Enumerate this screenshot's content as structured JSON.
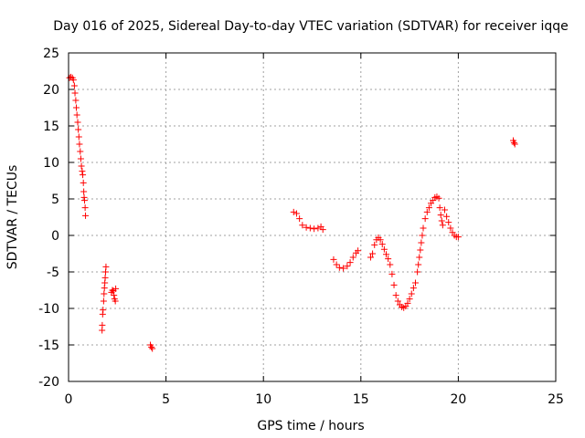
{
  "chart_data": {
    "type": "scatter",
    "title": "Day 016 of 2025, Sidereal Day-to-day VTEC variation (SDTVAR) for receiver iqqe",
    "xlabel": "GPS time / hours",
    "ylabel": "SDTVAR / TECUs",
    "xlim": [
      0,
      25
    ],
    "ylim": [
      -20,
      25
    ],
    "xticks": [
      0,
      5,
      10,
      15,
      20,
      25
    ],
    "yticks": [
      -20,
      -15,
      -10,
      -5,
      0,
      5,
      10,
      15,
      20,
      25
    ],
    "xtick_labels": [
      "0",
      "5",
      "10",
      "15",
      "20",
      "25"
    ],
    "ytick_labels": [
      "-20",
      "-15",
      "-10",
      "-5",
      "0",
      "5",
      "10",
      "15",
      "20",
      "25"
    ],
    "grid": true,
    "marker": "+",
    "color": "#ff0000",
    "series": [
      {
        "name": "SDTVAR",
        "points": [
          [
            0.05,
            21.6
          ],
          [
            0.12,
            21.7
          ],
          [
            0.2,
            21.6
          ],
          [
            0.25,
            21.3
          ],
          [
            0.3,
            20.5
          ],
          [
            0.33,
            19.5
          ],
          [
            0.37,
            18.5
          ],
          [
            0.4,
            17.5
          ],
          [
            0.43,
            16.5
          ],
          [
            0.47,
            15.5
          ],
          [
            0.5,
            14.5
          ],
          [
            0.53,
            13.5
          ],
          [
            0.56,
            12.5
          ],
          [
            0.6,
            11.5
          ],
          [
            0.63,
            10.5
          ],
          [
            0.66,
            9.5
          ],
          [
            0.7,
            8.8
          ],
          [
            0.73,
            8.3
          ],
          [
            0.76,
            7.2
          ],
          [
            0.78,
            6.0
          ],
          [
            0.8,
            5.2
          ],
          [
            0.82,
            4.8
          ],
          [
            0.85,
            3.8
          ],
          [
            0.87,
            2.7
          ],
          [
            1.72,
            -13.0
          ],
          [
            1.73,
            -12.3
          ],
          [
            1.75,
            -10.8
          ],
          [
            1.77,
            -10.2
          ],
          [
            1.8,
            -9.0
          ],
          [
            1.82,
            -8.0
          ],
          [
            1.84,
            -7.2
          ],
          [
            1.86,
            -6.5
          ],
          [
            1.88,
            -5.8
          ],
          [
            1.9,
            -5.0
          ],
          [
            1.92,
            -4.3
          ],
          [
            2.2,
            -7.8
          ],
          [
            2.25,
            -7.5
          ],
          [
            2.3,
            -7.6
          ],
          [
            2.33,
            -8.2
          ],
          [
            2.36,
            -8.7
          ],
          [
            2.4,
            -9.0
          ],
          [
            2.42,
            -7.3
          ],
          [
            4.2,
            -15.0
          ],
          [
            4.25,
            -15.3
          ],
          [
            4.3,
            -15.5
          ],
          [
            11.55,
            3.2
          ],
          [
            11.7,
            3.0
          ],
          [
            11.85,
            2.3
          ],
          [
            12.0,
            1.4
          ],
          [
            12.2,
            1.1
          ],
          [
            12.4,
            1.0
          ],
          [
            12.6,
            0.9
          ],
          [
            12.8,
            1.0
          ],
          [
            12.95,
            1.2
          ],
          [
            13.05,
            0.8
          ],
          [
            13.6,
            -3.3
          ],
          [
            13.75,
            -4.0
          ],
          [
            13.9,
            -4.4
          ],
          [
            14.1,
            -4.5
          ],
          [
            14.3,
            -4.2
          ],
          [
            14.45,
            -3.7
          ],
          [
            14.6,
            -3.0
          ],
          [
            14.75,
            -2.4
          ],
          [
            14.85,
            -2.1
          ],
          [
            15.5,
            -3.0
          ],
          [
            15.6,
            -2.5
          ],
          [
            15.7,
            -1.3
          ],
          [
            15.8,
            -0.6
          ],
          [
            15.9,
            -0.3
          ],
          [
            16.0,
            -0.6
          ],
          [
            16.1,
            -1.2
          ],
          [
            16.2,
            -1.9
          ],
          [
            16.3,
            -2.6
          ],
          [
            16.4,
            -3.2
          ],
          [
            16.5,
            -4.0
          ],
          [
            16.6,
            -5.3
          ],
          [
            16.7,
            -6.8
          ],
          [
            16.8,
            -8.2
          ],
          [
            16.9,
            -9.0
          ],
          [
            17.0,
            -9.5
          ],
          [
            17.1,
            -9.8
          ],
          [
            17.2,
            -9.9
          ],
          [
            17.3,
            -9.7
          ],
          [
            17.4,
            -9.3
          ],
          [
            17.5,
            -8.7
          ],
          [
            17.6,
            -8.0
          ],
          [
            17.7,
            -7.2
          ],
          [
            17.8,
            -6.5
          ],
          [
            17.9,
            -5.0
          ],
          [
            17.95,
            -4.0
          ],
          [
            18.0,
            -3.0
          ],
          [
            18.05,
            -2.0
          ],
          [
            18.1,
            -1.0
          ],
          [
            18.15,
            0.0
          ],
          [
            18.2,
            1.0
          ],
          [
            18.3,
            2.3
          ],
          [
            18.4,
            3.2
          ],
          [
            18.5,
            3.8
          ],
          [
            18.6,
            4.4
          ],
          [
            18.7,
            4.8
          ],
          [
            18.8,
            5.2
          ],
          [
            18.9,
            5.3
          ],
          [
            19.0,
            5.1
          ],
          [
            19.05,
            3.8
          ],
          [
            19.1,
            2.8
          ],
          [
            19.15,
            2.0
          ],
          [
            19.2,
            1.4
          ],
          [
            19.3,
            3.5
          ],
          [
            19.4,
            2.6
          ],
          [
            19.5,
            1.8
          ],
          [
            19.6,
            1.0
          ],
          [
            19.7,
            0.4
          ],
          [
            19.8,
            0.0
          ],
          [
            19.9,
            -0.2
          ],
          [
            20.0,
            -0.2
          ],
          [
            22.82,
            13.0
          ],
          [
            22.86,
            12.7
          ],
          [
            22.9,
            12.5
          ]
        ]
      }
    ]
  }
}
